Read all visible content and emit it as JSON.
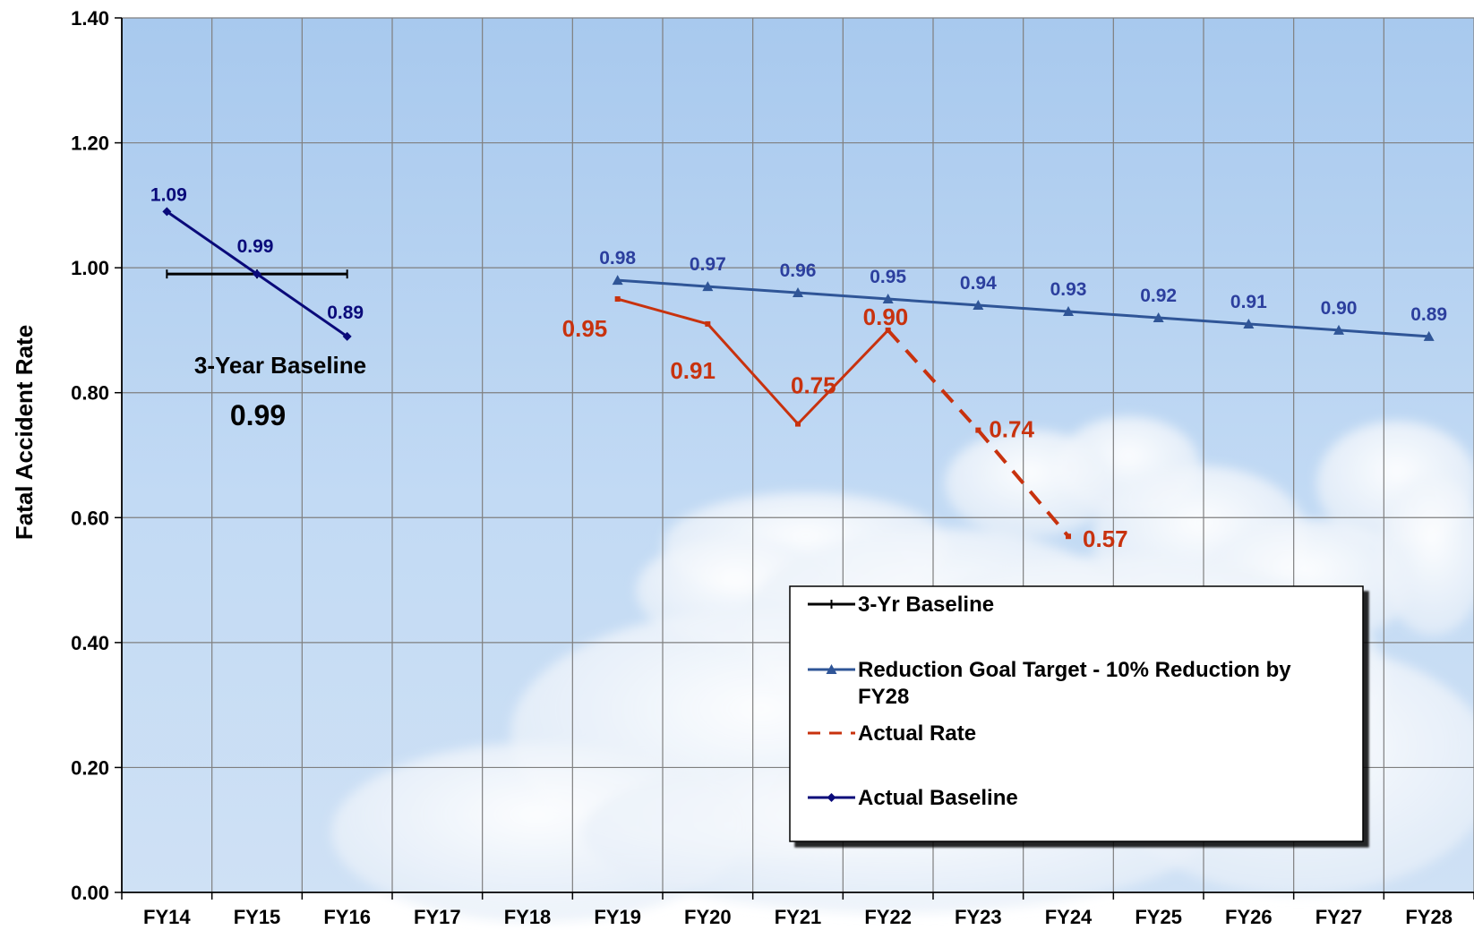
{
  "chart_data": {
    "type": "line",
    "ylabel": "Fatal Accident Rate",
    "ylim": [
      0,
      1.4
    ],
    "yticks": [
      "0.00",
      "0.20",
      "0.40",
      "0.60",
      "0.80",
      "1.00",
      "1.20",
      "1.40"
    ],
    "categories": [
      "FY14",
      "FY15",
      "FY16",
      "FY17",
      "FY18",
      "FY19",
      "FY20",
      "FY21",
      "FY22",
      "FY23",
      "FY24",
      "FY25",
      "FY26",
      "FY27",
      "FY28"
    ],
    "grid": true,
    "legend_position": "bottom-right",
    "series": [
      {
        "name": "3-Yr Baseline",
        "color": "#000000",
        "marker": "plus",
        "style": "solid",
        "points": [
          {
            "x": "FY14",
            "y": 0.99
          },
          {
            "x": "FY15",
            "y": 0.99
          },
          {
            "x": "FY16",
            "y": 0.99
          }
        ]
      },
      {
        "name": "Reduction Goal Target - 10% Reduction by FY28",
        "color": "#2f5597",
        "marker": "triangle",
        "style": "solid",
        "points": [
          {
            "x": "FY19",
            "y": 0.98,
            "label": "0.98"
          },
          {
            "x": "FY20",
            "y": 0.97,
            "label": "0.97"
          },
          {
            "x": "FY21",
            "y": 0.96,
            "label": "0.96"
          },
          {
            "x": "FY22",
            "y": 0.95,
            "label": "0.95"
          },
          {
            "x": "FY23",
            "y": 0.94,
            "label": "0.94"
          },
          {
            "x": "FY24",
            "y": 0.93,
            "label": "0.93"
          },
          {
            "x": "FY25",
            "y": 0.92,
            "label": "0.92"
          },
          {
            "x": "FY26",
            "y": 0.91,
            "label": "0.91"
          },
          {
            "x": "FY27",
            "y": 0.9,
            "label": "0.90"
          },
          {
            "x": "FY28",
            "y": 0.89,
            "label": "0.89"
          }
        ]
      },
      {
        "name": "Actual Rate",
        "color": "#c8320e",
        "marker": "dash",
        "style": "solid-then-dashed",
        "points": [
          {
            "x": "FY19",
            "y": 0.95,
            "label": "0.95"
          },
          {
            "x": "FY20",
            "y": 0.91,
            "label": "0.91"
          },
          {
            "x": "FY21",
            "y": 0.75,
            "label": "0.75"
          },
          {
            "x": "FY22",
            "y": 0.9,
            "label": "0.90"
          },
          {
            "x": "FY23",
            "y": 0.74,
            "label": "0.74",
            "dashed": true
          },
          {
            "x": "FY24",
            "y": 0.57,
            "label": "0.57",
            "dashed": true
          }
        ]
      },
      {
        "name": "Actual Baseline",
        "color": "#0a0a7a",
        "marker": "diamond",
        "style": "solid",
        "points": [
          {
            "x": "FY14",
            "y": 1.09,
            "label": "1.09"
          },
          {
            "x": "FY15",
            "y": 0.99,
            "label": "0.99"
          },
          {
            "x": "FY16",
            "y": 0.89,
            "label": "0.89"
          }
        ]
      }
    ],
    "annotations": [
      {
        "text": "3-Year Baseline"
      },
      {
        "text": "0.99"
      }
    ]
  }
}
